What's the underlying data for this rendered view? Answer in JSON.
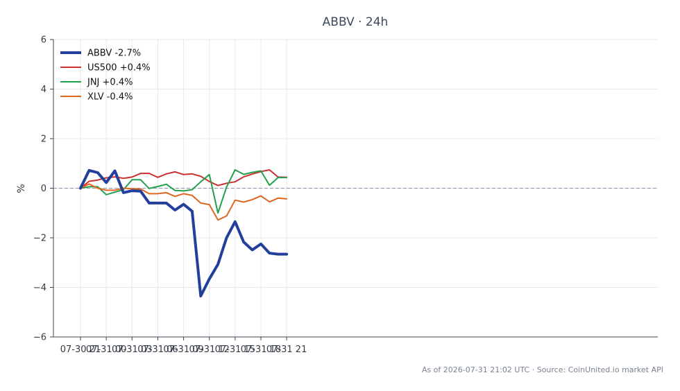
{
  "chart_data": {
    "type": "line",
    "title": "ABBV · 24h",
    "xlabel": "",
    "ylabel": "%",
    "ylim": [
      -6,
      6
    ],
    "yticks": [
      6,
      4,
      2,
      0,
      -2,
      -4,
      -6
    ],
    "ytick_labels": [
      "6",
      "4",
      "2",
      "0",
      "−2",
      "−4",
      "−6"
    ],
    "xticks": [
      "07-30 21",
      "07-31 00",
      "07-31 03",
      "07-31 06",
      "07-31 09",
      "07-31 12",
      "07-31 15",
      "07-31 18",
      "07-31 21"
    ],
    "x": [
      "07-30 21",
      "07-30 22",
      "07-30 23",
      "07-31 00",
      "07-31 01",
      "07-31 02",
      "07-31 03",
      "07-31 04",
      "07-31 05",
      "07-31 06",
      "07-31 07",
      "07-31 08",
      "07-31 09",
      "07-31 10",
      "07-31 11",
      "07-31 12",
      "07-31 13",
      "07-31 14",
      "07-31 15",
      "07-31 16",
      "07-31 17",
      "07-31 18",
      "07-31 19",
      "07-31 20",
      "07-31 21"
    ],
    "grid": true,
    "legend_position": "top-left",
    "zero_line": true,
    "series": [
      {
        "name": "ABBV -2.7%",
        "color": "#233f9c",
        "values": [
          0.0,
          0.72,
          0.63,
          0.23,
          0.7,
          -0.18,
          -0.1,
          -0.12,
          -0.6,
          -0.6,
          -0.6,
          -0.88,
          -0.65,
          -0.93,
          -4.35,
          -3.66,
          -3.07,
          -2.0,
          -1.35,
          -2.17,
          -2.49,
          -2.25,
          -2.62,
          -2.66,
          -2.66
        ]
      },
      {
        "name": "US500 +0.4%",
        "color": "#cc2f2f",
        "values": [
          0.0,
          0.28,
          0.33,
          0.42,
          0.46,
          0.4,
          0.45,
          0.6,
          0.6,
          0.44,
          0.58,
          0.66,
          0.55,
          0.58,
          0.48,
          0.27,
          0.11,
          0.2,
          0.26,
          0.46,
          0.57,
          0.67,
          0.74,
          0.45,
          0.44
        ]
      },
      {
        "name": "JNJ +0.4%",
        "color": "#22a04d",
        "values": [
          0.0,
          0.06,
          0.06,
          -0.26,
          -0.16,
          -0.06,
          0.34,
          0.34,
          -0.01,
          0.07,
          0.16,
          -0.09,
          -0.11,
          -0.06,
          0.26,
          0.55,
          -1.0,
          0.05,
          0.74,
          0.56,
          0.64,
          0.7,
          0.12,
          0.43,
          0.43
        ]
      },
      {
        "name": "XLV -0.4%",
        "color": "#e0661f",
        "values": [
          0.0,
          0.17,
          0.0,
          -0.08,
          -0.08,
          0.0,
          -0.02,
          -0.03,
          -0.22,
          -0.22,
          -0.18,
          -0.33,
          -0.22,
          -0.29,
          -0.6,
          -0.66,
          -1.28,
          -1.12,
          -0.48,
          -0.56,
          -0.46,
          -0.31,
          -0.55,
          -0.4,
          -0.43
        ]
      }
    ]
  },
  "footer": "As of 2026-07-31 21:02 UTC · Source: CoinUnited.io market API"
}
